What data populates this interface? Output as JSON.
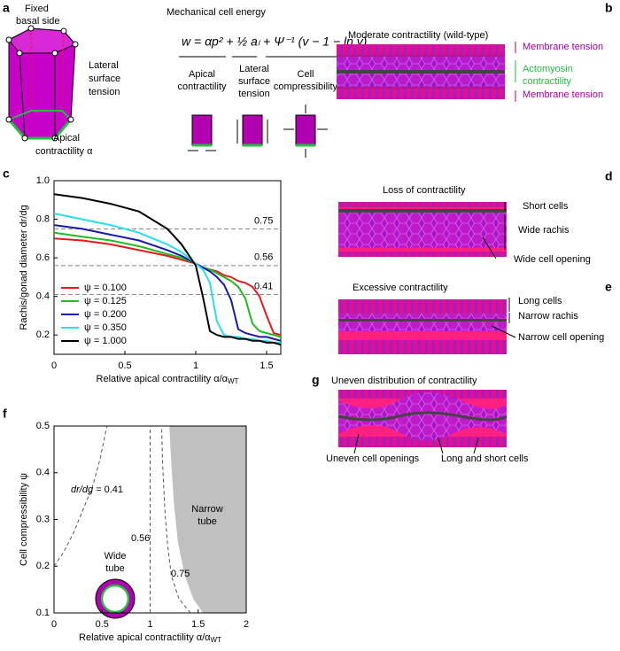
{
  "panel_labels": [
    "a",
    "b",
    "c",
    "d",
    "e",
    "f",
    "g"
  ],
  "panel_a": {
    "basal": [
      "Fixed",
      "basal side"
    ],
    "lateral": [
      "Lateral",
      "surface",
      "tension"
    ],
    "apical": [
      "Apical",
      "contractility α"
    ],
    "title": "Mechanical cell energy",
    "equation": "w = αp² + ½ aₗ + Ψ⁻¹ (v − 1 − ln v)",
    "term_apical": [
      "Apical",
      "contractility"
    ],
    "term_lateral": [
      "Lateral",
      "surface",
      "tension"
    ],
    "term_cell": [
      "Cell",
      "compressibility"
    ]
  },
  "panel_b": {
    "title": "Moderate contractility (wild-type)",
    "labels": [
      "Membrane tension",
      "Actomyosin",
      "contractility",
      "Membrane tension"
    ]
  },
  "panel_d": {
    "title": "Loss of contractility",
    "labels": [
      "Short cells",
      "Wide rachis",
      "Wide cell opening"
    ]
  },
  "panel_e": {
    "title": "Excessive contractility",
    "labels": [
      "Long cells",
      "Narrow rachis",
      "Narrow cell opening"
    ]
  },
  "panel_g": {
    "title": "Uneven distribution of contractility",
    "labels": [
      "Uneven cell openings",
      "Long and short cells"
    ]
  },
  "chart_data": [
    {
      "type": "line",
      "xlabel": "Relative apical contractility α/α",
      "xlabel_sub": "WT",
      "ylabel": "Rachis/gonad diameter dr/dg",
      "xlim": [
        0,
        1.6
      ],
      "ylim": [
        0.1,
        1.0
      ],
      "xticks": [
        0,
        0.5,
        1,
        1.5
      ],
      "yticks": [
        0.2,
        0.4,
        0.6,
        0.8,
        {
          "value": 1.0,
          "label": "1.0"
        }
      ],
      "reference_lines": [
        0.75,
        0.56,
        0.41
      ],
      "legend": "lower left",
      "x": [
        0,
        0.2,
        0.4,
        0.6,
        0.8,
        0.9,
        1.0,
        1.05,
        1.1,
        1.15,
        1.2,
        1.25,
        1.3,
        1.35,
        1.4,
        1.45,
        1.5,
        1.55,
        1.6
      ],
      "series": [
        {
          "name": "ψ = 0.100",
          "color": "#e41a1c",
          "values": [
            0.7,
            0.69,
            0.67,
            0.64,
            0.61,
            0.59,
            0.57,
            0.55,
            0.54,
            0.53,
            0.51,
            0.5,
            0.48,
            0.47,
            0.45,
            0.4,
            0.3,
            0.21,
            0.2
          ]
        },
        {
          "name": "ψ = 0.125",
          "color": "#22bb22",
          "values": [
            0.73,
            0.71,
            0.69,
            0.66,
            0.62,
            0.6,
            0.57,
            0.55,
            0.54,
            0.52,
            0.5,
            0.48,
            0.45,
            0.39,
            0.26,
            0.22,
            0.21,
            0.2,
            0.19
          ]
        },
        {
          "name": "ψ = 0.200",
          "color": "#1a1aaa",
          "values": [
            0.77,
            0.75,
            0.72,
            0.69,
            0.64,
            0.61,
            0.57,
            0.55,
            0.53,
            0.5,
            0.46,
            0.38,
            0.23,
            0.21,
            0.2,
            0.19,
            0.19,
            0.18,
            0.17
          ]
        },
        {
          "name": "ψ = 0.350",
          "color": "#22e0f0",
          "values": [
            0.83,
            0.8,
            0.77,
            0.73,
            0.67,
            0.63,
            0.57,
            0.54,
            0.47,
            0.27,
            0.2,
            0.19,
            0.19,
            0.18,
            0.18,
            0.17,
            0.17,
            0.16,
            0.16
          ]
        },
        {
          "name": "ψ = 1.000",
          "color": "#000000",
          "values": [
            0.93,
            0.91,
            0.88,
            0.84,
            0.75,
            0.67,
            0.56,
            0.4,
            0.22,
            0.2,
            0.19,
            0.19,
            0.18,
            0.18,
            0.17,
            0.17,
            0.16,
            0.16,
            0.15
          ]
        }
      ]
    },
    {
      "type": "contour",
      "xlabel": "Relative apical contractility α/α",
      "xlabel_sub": "WT",
      "ylabel": "Cell compressibility ψ",
      "xlim": [
        0,
        2
      ],
      "ylim": [
        0.1,
        0.5
      ],
      "xticks": [
        0,
        0.5,
        1,
        1.5,
        2
      ],
      "yticks": [
        0.1,
        0.2,
        0.3,
        0.4,
        0.5
      ],
      "contour_prefix": "dr/dg = ",
      "contours": [
        {
          "level": 0.41,
          "x": [
            0,
            0.1,
            0.2,
            0.3,
            0.4,
            0.48,
            0.55
          ],
          "y": [
            0.2,
            0.23,
            0.27,
            0.32,
            0.37,
            0.43,
            0.5
          ]
        },
        {
          "level": 0.56,
          "x": [
            1,
            1
          ],
          "y": [
            0.1,
            0.5
          ]
        },
        {
          "level": 0.75,
          "x": [
            1.42,
            1.3,
            1.22,
            1.18,
            1.15,
            1.13,
            1.12
          ],
          "y": [
            0.1,
            0.13,
            0.18,
            0.25,
            0.33,
            0.42,
            0.5
          ]
        }
      ],
      "region": {
        "color": "#c0c0c0",
        "x": [
          1.55,
          1.45,
          1.36,
          1.29,
          1.25,
          1.22,
          1.2
        ],
        "y": [
          0.1,
          0.13,
          0.18,
          0.25,
          0.33,
          0.42,
          0.5
        ]
      },
      "region_labels": [
        [
          "Narrow",
          "tube"
        ],
        [
          "Wide",
          "tube"
        ]
      ]
    }
  ]
}
